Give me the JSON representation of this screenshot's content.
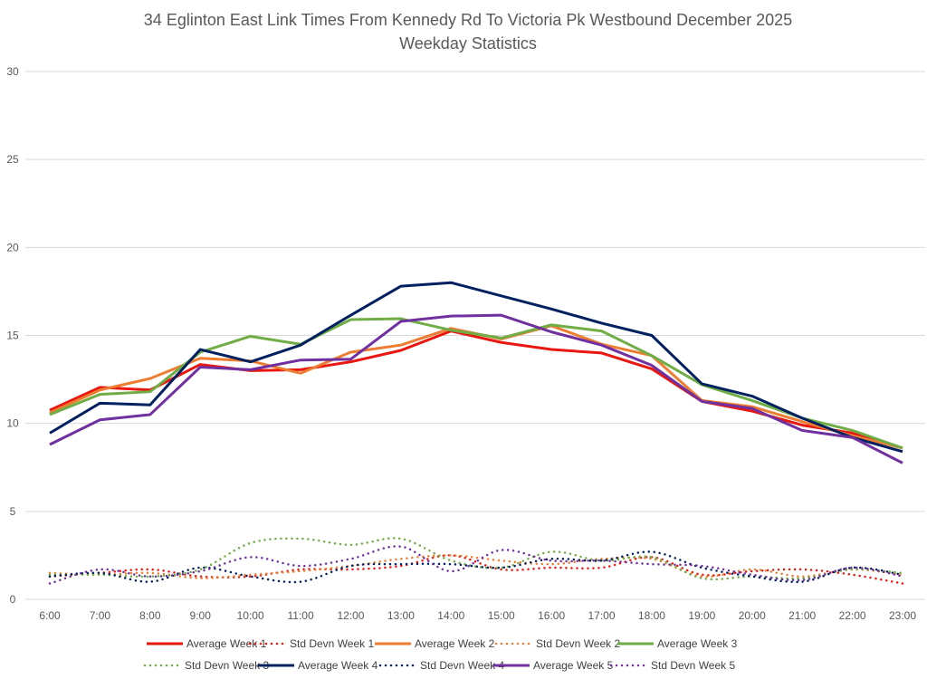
{
  "chart_data": {
    "type": "line",
    "title": "34 Eglinton East Link Times From Kennedy Rd To Victoria Pk Westbound December 2025",
    "subtitle": "Weekday Statistics",
    "xlabel": "",
    "ylabel": "",
    "ylim": [
      0,
      30
    ],
    "yticks": [
      0,
      5,
      10,
      15,
      20,
      25,
      30
    ],
    "grid": true,
    "legend": "bottom",
    "categories": [
      "6:00",
      "7:00",
      "8:00",
      "9:00",
      "10:00",
      "11:00",
      "12:00",
      "13:00",
      "14:00",
      "15:00",
      "16:00",
      "17:00",
      "18:00",
      "19:00",
      "20:00",
      "21:00",
      "22:00",
      "23:00"
    ],
    "series": [
      {
        "name": "Average Week 1",
        "color": "#e8170f",
        "style": "solid",
        "values": [
          10.75,
          12.05,
          11.9,
          13.35,
          13.0,
          13.05,
          13.5,
          14.15,
          15.25,
          14.6,
          14.2,
          14.0,
          13.1,
          11.25,
          10.7,
          9.9,
          9.45,
          8.6
        ]
      },
      {
        "name": "Std Devn Week 1",
        "color": "#e8170f",
        "style": "dotted",
        "values": [
          1.3,
          1.5,
          1.7,
          1.3,
          1.3,
          1.7,
          1.7,
          1.9,
          2.5,
          1.7,
          1.8,
          1.8,
          2.4,
          1.4,
          1.6,
          1.7,
          1.4,
          0.9
        ]
      },
      {
        "name": "Average Week 2",
        "color": "#ed7d31",
        "style": "solid",
        "values": [
          10.6,
          11.9,
          12.55,
          13.7,
          13.55,
          12.85,
          14.05,
          14.45,
          15.4,
          14.8,
          15.55,
          14.5,
          13.85,
          11.3,
          10.95,
          10.1,
          9.3,
          8.6
        ]
      },
      {
        "name": "Std Devn Week 2",
        "color": "#ed7d31",
        "style": "dotted",
        "values": [
          1.5,
          1.4,
          1.5,
          1.2,
          1.4,
          1.6,
          1.9,
          2.3,
          2.5,
          2.2,
          2.0,
          2.3,
          2.3,
          1.3,
          1.7,
          1.3,
          1.7,
          1.4
        ]
      },
      {
        "name": "Average Week 3",
        "color": "#70ad47",
        "style": "solid",
        "values": [
          10.5,
          11.65,
          11.8,
          14.05,
          14.95,
          14.5,
          15.9,
          15.95,
          15.3,
          14.85,
          15.6,
          15.25,
          13.85,
          12.2,
          11.3,
          10.3,
          9.6,
          8.6
        ]
      },
      {
        "name": "Std Devn Week 3",
        "color": "#70ad47",
        "style": "dotted",
        "values": [
          1.4,
          1.4,
          1.3,
          1.7,
          3.2,
          3.45,
          3.1,
          3.45,
          2.2,
          1.8,
          2.7,
          2.2,
          2.4,
          1.2,
          1.3,
          1.2,
          1.7,
          1.5
        ]
      },
      {
        "name": "Average Week 4",
        "color": "#002060",
        "style": "solid",
        "values": [
          9.45,
          11.15,
          11.05,
          14.2,
          13.5,
          14.45,
          16.15,
          17.8,
          18.0,
          17.25,
          16.5,
          15.7,
          15.0,
          12.25,
          11.55,
          10.3,
          9.2,
          8.4
        ]
      },
      {
        "name": "Std Devn Week 4",
        "color": "#002060",
        "style": "dotted",
        "values": [
          1.3,
          1.5,
          1.0,
          1.8,
          1.3,
          1.0,
          1.9,
          2.0,
          2.0,
          1.8,
          2.3,
          2.2,
          2.7,
          1.8,
          1.3,
          1.0,
          1.8,
          1.4
        ]
      },
      {
        "name": "Average Week 5",
        "color": "#7030a0",
        "style": "solid",
        "values": [
          8.8,
          10.2,
          10.5,
          13.2,
          13.05,
          13.6,
          13.65,
          15.8,
          16.1,
          16.15,
          15.2,
          14.45,
          13.3,
          11.25,
          10.85,
          9.6,
          9.2,
          7.75
        ]
      },
      {
        "name": "Std Devn Week 5",
        "color": "#7030a0",
        "style": "dotted",
        "values": [
          0.9,
          1.7,
          1.3,
          1.6,
          2.4,
          1.9,
          2.3,
          3.0,
          1.6,
          2.8,
          2.2,
          2.2,
          2.0,
          1.9,
          1.4,
          1.1,
          1.8,
          1.3
        ]
      }
    ]
  }
}
